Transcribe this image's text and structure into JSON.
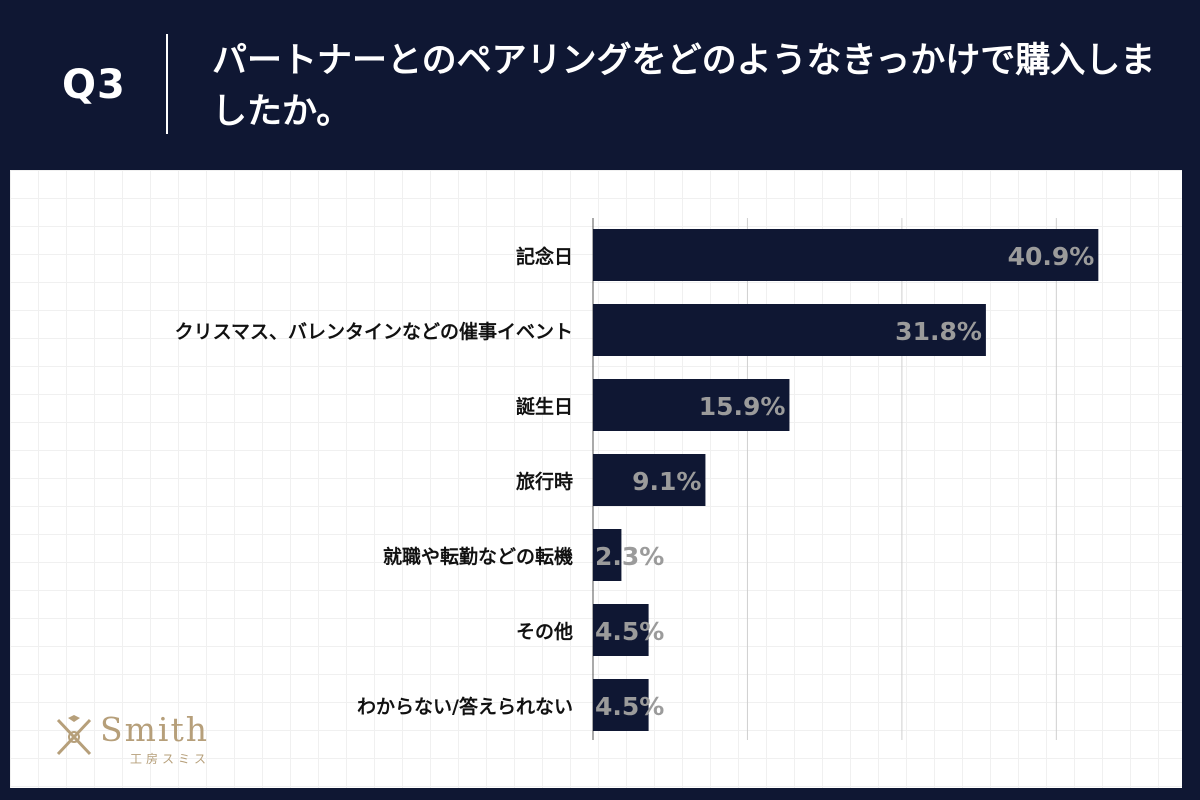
{
  "header": {
    "q_label": "Q3",
    "question": "パートナーとのペアリングをどのようなきっかけで購入しましたか。"
  },
  "colors": {
    "background": "#0f1733",
    "bar": "#0f1733",
    "value_label": "#9b9b9b",
    "logo": "#b69f7a"
  },
  "chart_data": {
    "type": "bar",
    "orientation": "horizontal",
    "title": "パートナーとのペアリングをどのようなきっかけで購入しましたか。",
    "categories": [
      "記念日",
      "クリスマス、バレンタインなどの催事イベント",
      "誕生日",
      "旅行時",
      "就職や転勤などの転機",
      "その他",
      "わからない/答えられない"
    ],
    "values": [
      40.9,
      31.8,
      15.9,
      9.1,
      2.3,
      4.5,
      4.5
    ],
    "value_labels": [
      "40.9%",
      "31.8%",
      "15.9%",
      "9.1%",
      "2.3%",
      "4.5%",
      "4.5%"
    ],
    "unit": "%",
    "xlim": [
      0,
      45
    ],
    "gridlines": [
      0,
      12.5,
      25,
      37.5
    ],
    "xlabel": "",
    "ylabel": ""
  },
  "logo": {
    "word": "Smith",
    "sub": "工房スミス"
  }
}
